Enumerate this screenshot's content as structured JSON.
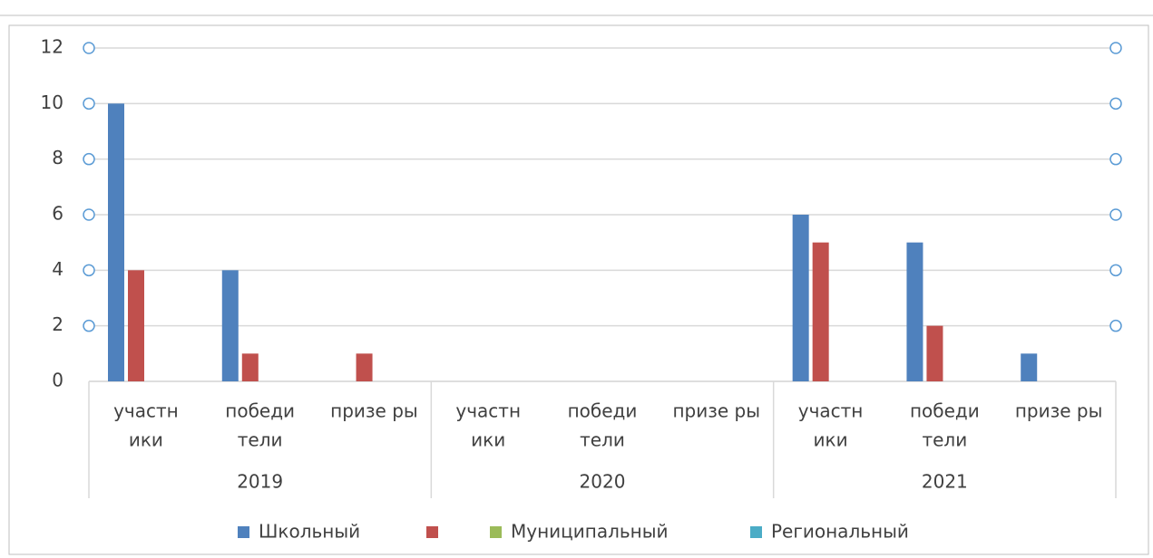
{
  "chart_data": {
    "type": "bar",
    "categories": [
      [
        "участн",
        "ики"
      ],
      [
        "победи",
        "тели"
      ],
      [
        "призе ры"
      ],
      [
        "участн",
        "ики"
      ],
      [
        "победи",
        "тели"
      ],
      [
        "призе ры"
      ],
      [
        "участн",
        "ики"
      ],
      [
        "победи",
        "тели"
      ],
      [
        "призе ры"
      ]
    ],
    "groups": [
      "2019",
      "2020",
      "2021"
    ],
    "series": [
      {
        "name": "Школьный",
        "color": "#4f81bd",
        "values": [
          10,
          4,
          0,
          0,
          0,
          0,
          6,
          5,
          1
        ]
      },
      {
        "name": null,
        "color": "#c0504d",
        "values": [
          4,
          1,
          1,
          0,
          0,
          0,
          5,
          2,
          0
        ]
      },
      {
        "name": "Муниципальный",
        "color": "#9bbb59",
        "values": [
          0,
          0,
          0,
          0,
          0,
          0,
          0,
          0,
          0
        ]
      },
      {
        "name": "Региональный",
        "color": "#4bacc6",
        "values": [
          0,
          0,
          0,
          0,
          0,
          0,
          0,
          0,
          0
        ]
      }
    ],
    "ylim": [
      0,
      12
    ],
    "yticks": [
      0,
      2,
      4,
      6,
      8,
      10,
      12
    ],
    "grid": true,
    "legend": "bottom"
  }
}
